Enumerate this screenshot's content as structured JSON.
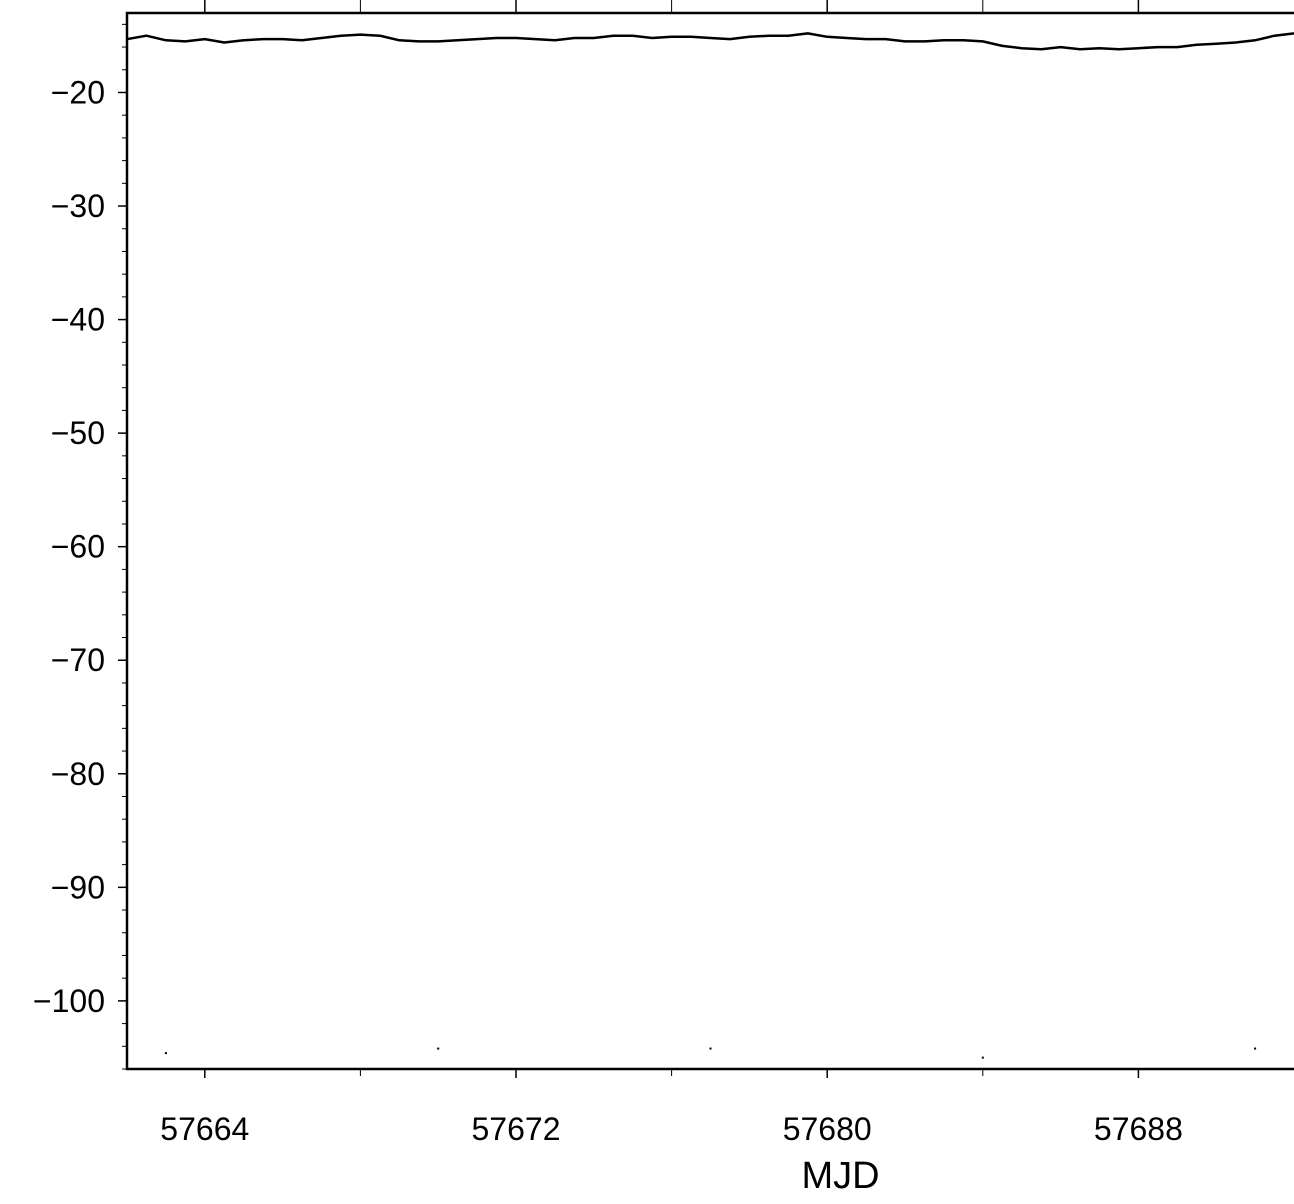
{
  "chart_data": {
    "type": "line",
    "title": "",
    "xlabel": "MJD",
    "ylabel": "",
    "xlim": [
      57662.0,
      57692.0
    ],
    "ylim": [
      -106,
      -13
    ],
    "grid": false,
    "x_ticks": [
      57664,
      57672,
      57680,
      57688
    ],
    "x_tick_labels": [
      "57664",
      "57672",
      "57680",
      "57688"
    ],
    "x_minor_ticks": [
      57668,
      57676,
      57684
    ],
    "y_ticks": [
      -20,
      -30,
      -40,
      -50,
      -60,
      -70,
      -80,
      -90,
      -100
    ],
    "y_tick_labels": [
      "−20",
      "−30",
      "−40",
      "−50",
      "−60",
      "−70",
      "−80",
      "−90",
      "−100"
    ],
    "series": [
      {
        "color": "#000000",
        "x": [
          57662.0,
          57662.5,
          57663.0,
          57663.5,
          57664.0,
          57664.5,
          57665.0,
          57665.5,
          57666.0,
          57666.5,
          57667.0,
          57667.5,
          57668.0,
          57668.5,
          57669.0,
          57669.5,
          57670.0,
          57670.5,
          57671.0,
          57671.5,
          57672.0,
          57672.5,
          57673.0,
          57673.5,
          57674.0,
          57674.5,
          57675.0,
          57675.5,
          57676.0,
          57676.5,
          57677.0,
          57677.5,
          57678.0,
          57678.5,
          57679.0,
          57679.5,
          57680.0,
          57680.5,
          57681.0,
          57681.5,
          57682.0,
          57682.5,
          57683.0,
          57683.5,
          57684.0,
          57684.5,
          57685.0,
          57685.5,
          57686.0,
          57686.5,
          57687.0,
          57687.5,
          57688.0,
          57688.5,
          57689.0,
          57689.5,
          57690.0,
          57690.5,
          57691.0,
          57691.5,
          57692.0
        ],
        "values": [
          -15.3,
          -15.0,
          -15.4,
          -15.5,
          -15.3,
          -15.6,
          -15.4,
          -15.3,
          -15.3,
          -15.4,
          -15.2,
          -15.0,
          -14.9,
          -15.0,
          -15.4,
          -15.5,
          -15.5,
          -15.4,
          -15.3,
          -15.2,
          -15.2,
          -15.3,
          -15.4,
          -15.2,
          -15.2,
          -15.0,
          -15.0,
          -15.2,
          -15.1,
          -15.1,
          -15.2,
          -15.3,
          -15.1,
          -15.0,
          -15.0,
          -14.8,
          -15.1,
          -15.2,
          -15.3,
          -15.3,
          -15.5,
          -15.5,
          -15.4,
          -15.4,
          -15.5,
          -15.9,
          -16.1,
          -16.2,
          -16.0,
          -16.2,
          -16.1,
          -16.2,
          -16.1,
          -16.0,
          -16.0,
          -15.8,
          -15.7,
          -15.6,
          -15.4,
          -15.0,
          -14.8
        ]
      }
    ],
    "markers": [
      {
        "x": 57663.0,
        "y": -104.6
      },
      {
        "x": 57670.0,
        "y": -104.2
      },
      {
        "x": 57677.0,
        "y": -104.2
      },
      {
        "x": 57684.0,
        "y": -105.0
      },
      {
        "x": 57691.0,
        "y": -104.2
      }
    ]
  }
}
